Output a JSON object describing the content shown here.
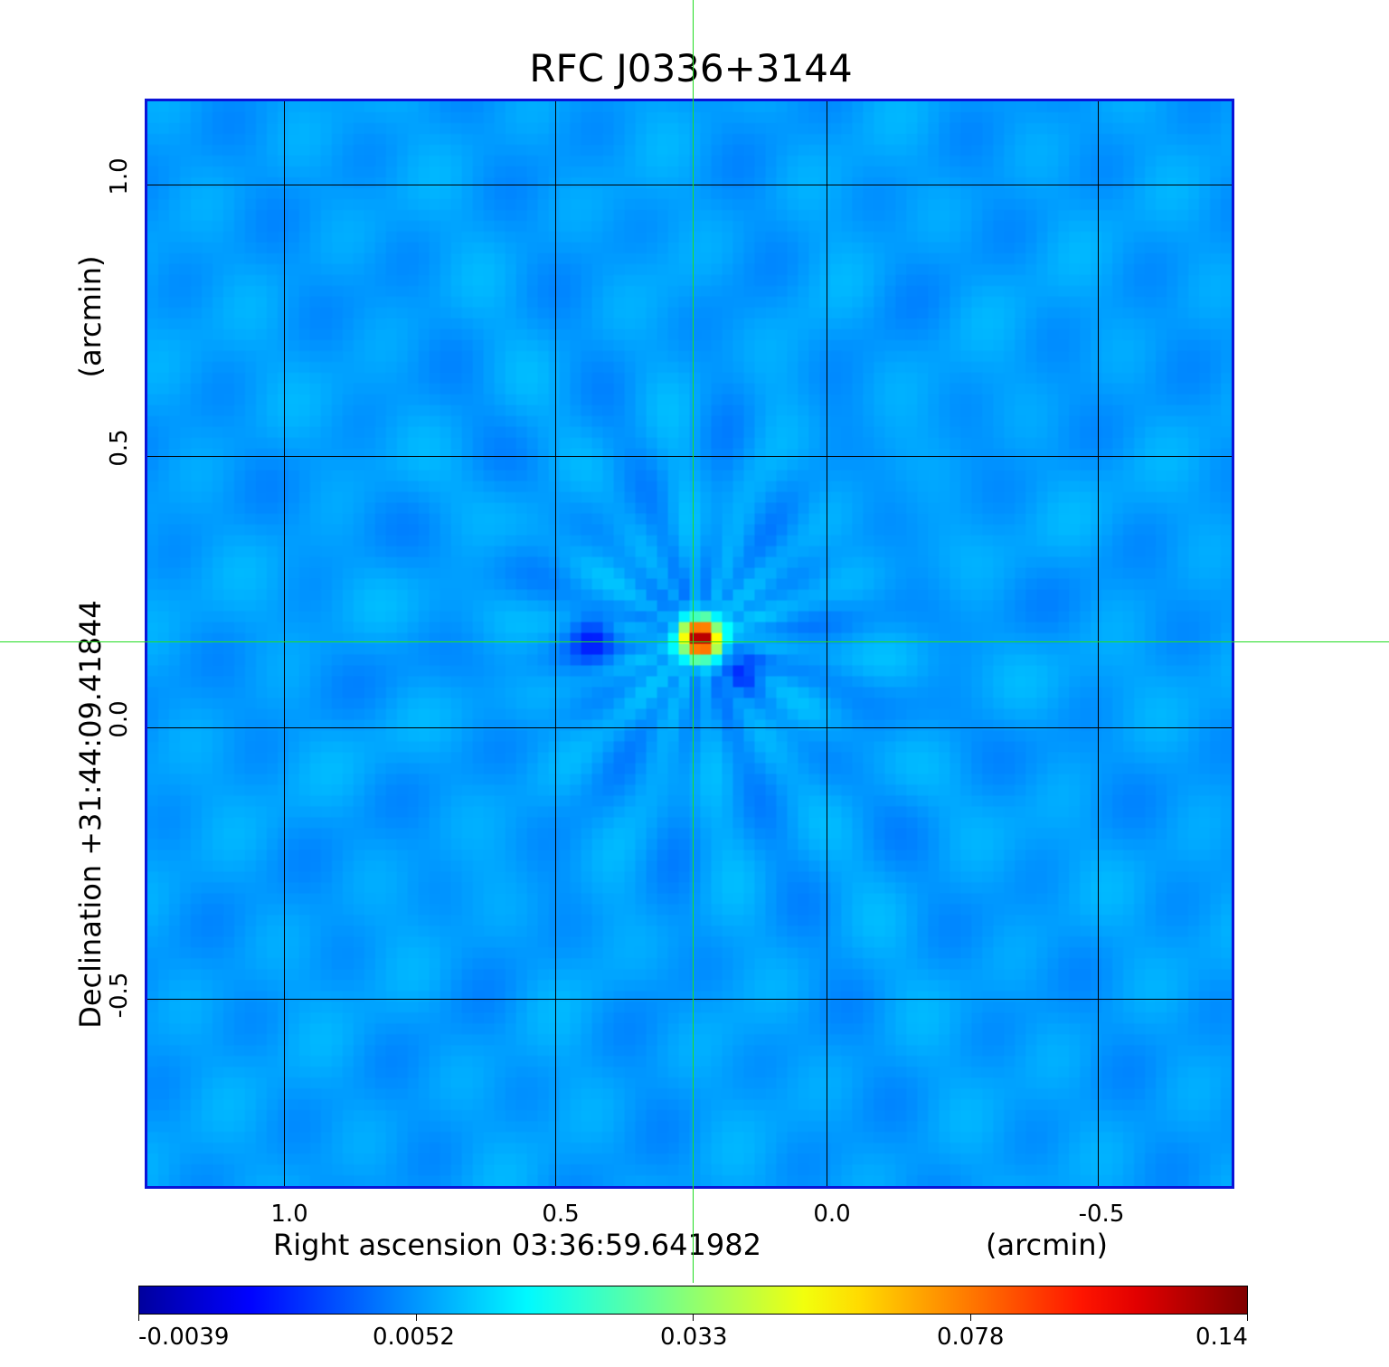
{
  "chart_data": {
    "type": "heatmap",
    "title": "RFC J0336+3144",
    "xlabel": "Right ascension  03:36:59.641982",
    "xunit": "(arcmin)",
    "ylabel": "Declination  +31:44:09.41844",
    "yunit": "(arcmin)",
    "x_ticks": [
      "1.0",
      "0.5",
      "0.0",
      "-0.5"
    ],
    "y_ticks": [
      "1.0",
      "0.5",
      "0.0",
      "-0.5"
    ],
    "xlim": [
      1.25,
      -0.75
    ],
    "ylim": [
      -0.85,
      1.15
    ],
    "grid": true,
    "crosshair": {
      "ra_offset_arcmin": 0.24,
      "dec_offset_arcmin": 0.16
    },
    "peak": {
      "ra_offset_arcmin": 0.23,
      "dec_offset_arcmin": 0.16,
      "value": 0.14
    },
    "colorbar": {
      "ticks": [
        "-0.0039",
        "0.0052",
        "0.033",
        "0.078",
        "0.14"
      ],
      "colormap": "jet"
    },
    "colors": {
      "title": "#0a14d8",
      "frame": "#0a14d8",
      "background": "#0a57f0",
      "crosshair": "#22dd22"
    }
  }
}
